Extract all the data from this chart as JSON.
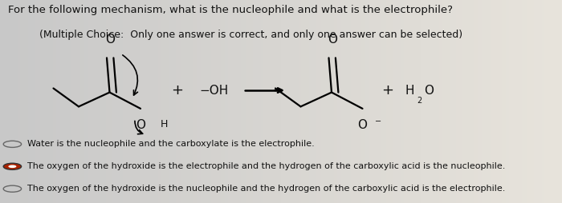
{
  "bg_color_left": "#c8c8c8",
  "bg_color_right": "#e8e4dc",
  "title_line1": "For the following mechanism, what is the nucleophile and what is the electrophile?",
  "title_line2": "(Multiple Choice:  Only one answer is correct, and only one answer can be selected)",
  "choice1": "Water is the nucleophile and the carboxylate is the electrophile.",
  "choice2": "The oxygen of the hydroxide is the electrophile and the hydrogen of the carboxylic acid is the nucleophile.",
  "choice3": "The oxygen of the hydroxide is the nucleophile and the hydrogen of the carboxylic acid is the electrophile.",
  "choice1_selected": false,
  "choice2_selected": true,
  "choice3_selected": false,
  "text_color": "#111111",
  "font_size_title1": 9.5,
  "font_size_title2": 9.0,
  "font_size_choice": 8.0,
  "font_size_chem": 11,
  "font_size_chem_small": 9
}
